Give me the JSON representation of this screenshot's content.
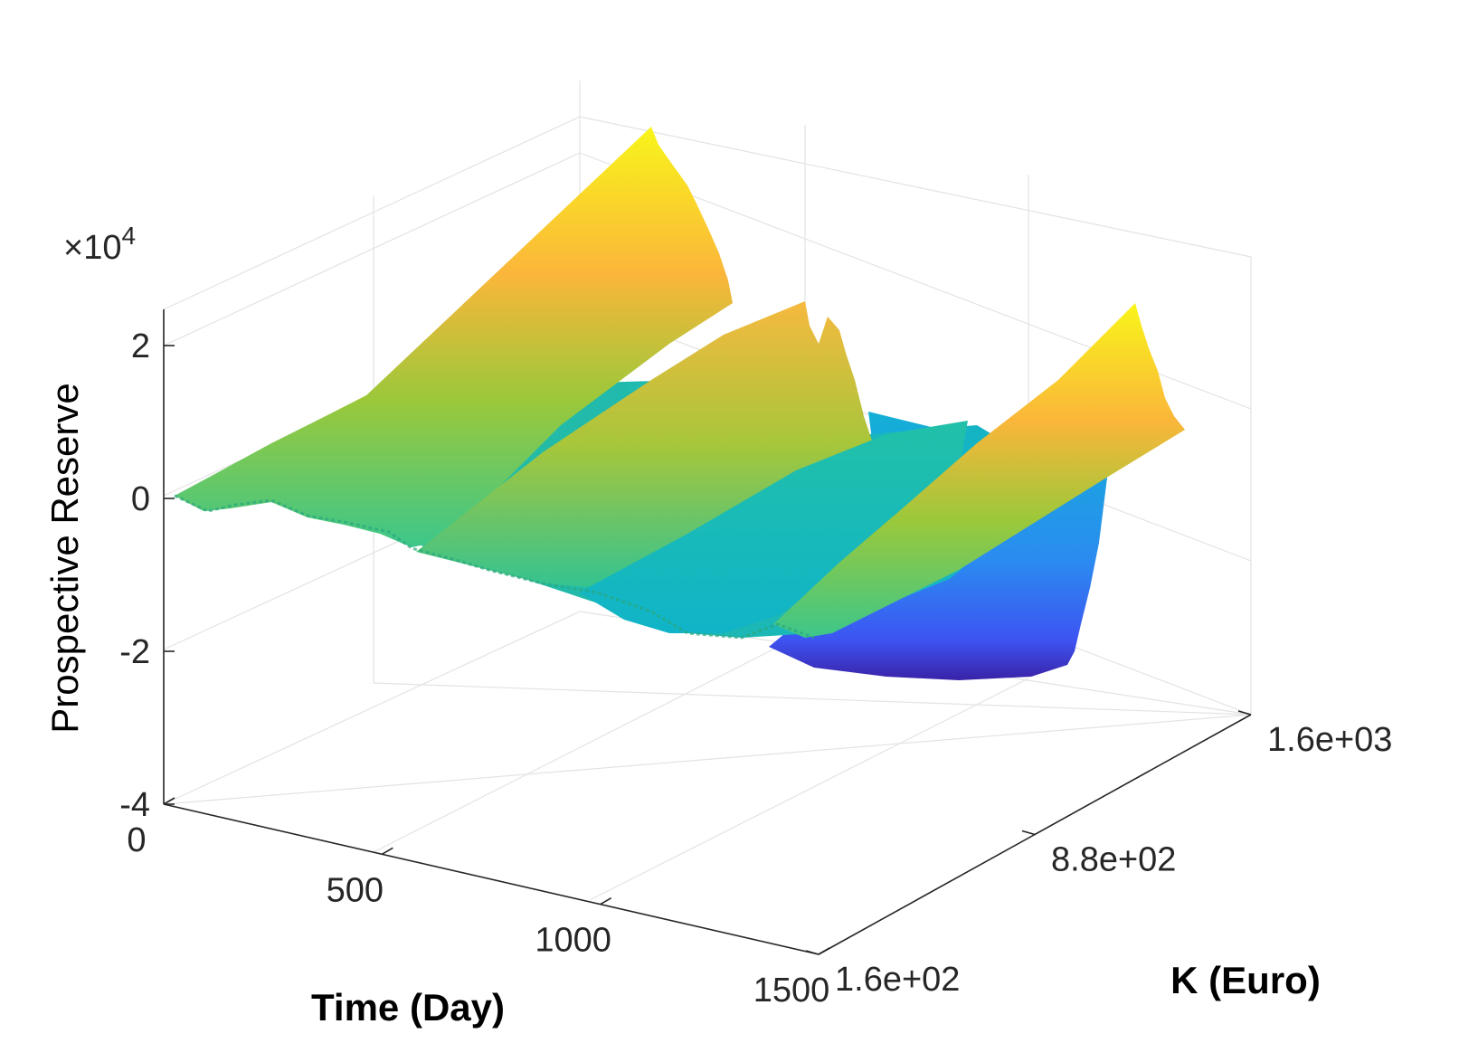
{
  "chart_data": {
    "type": "surface",
    "x_axis": {
      "label": "Time (Day)",
      "range": [
        0,
        1500
      ],
      "ticks": [
        0,
        500,
        1000,
        1500
      ],
      "tick_labels": [
        "0",
        "500",
        "1000",
        "1500"
      ]
    },
    "y_axis": {
      "label": "K (Euro)",
      "range": [
        160,
        1600
      ],
      "ticks": [
        160,
        880,
        1600
      ],
      "tick_labels": [
        "1.6e+02",
        "8.8e+02",
        "1.6e+03"
      ]
    },
    "z_axis": {
      "label": "Prospective Reserve",
      "range": [
        -40000,
        20000
      ],
      "ticks": [
        -40000,
        -20000,
        0,
        20000
      ],
      "tick_labels": [
        "-4",
        "-2",
        "0",
        "2"
      ],
      "exponent_label": "×10",
      "exponent_power": "4"
    },
    "grid": true,
    "colormap": "parula",
    "surface_description": "Sawtooth ridges along time with jagged drops; minimum trough near high K late in time",
    "approx_ridge_peaks": [
      {
        "time": 500,
        "K": 1600,
        "reserve": 22000
      },
      {
        "time": 1000,
        "K": 1600,
        "reserve": 12000
      },
      {
        "time": 1500,
        "K": 1600,
        "reserve": 8000
      }
    ],
    "approx_minimum": {
      "time": 1500,
      "K": 1600,
      "reserve": -24000
    }
  }
}
